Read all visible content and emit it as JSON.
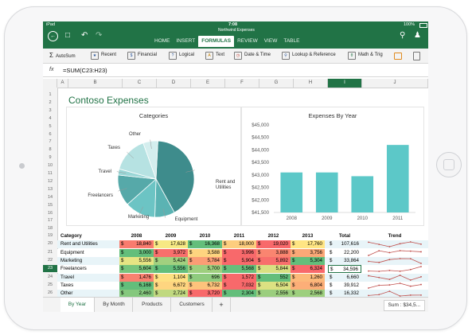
{
  "status": {
    "carrier": "iPad",
    "time": "7:08",
    "battery": "100%"
  },
  "doc_title": "Northwind Expenses",
  "ribbon_tabs": [
    "HOME",
    "INSERT",
    "FORMULAS",
    "REVIEW",
    "VIEW",
    "TABLE"
  ],
  "ribbon_active": "FORMULAS",
  "ribbon_items": [
    "AutoSum",
    "Recent",
    "Financial",
    "Logical",
    "Text",
    "Date & Time",
    "Lookup & Reference",
    "Math & Trig"
  ],
  "formula": "=SUM(C23:H23)",
  "fx_label": "fx",
  "columns": [
    "A",
    "B",
    "C",
    "D",
    "E",
    "F",
    "G",
    "H",
    "I",
    "J"
  ],
  "selected_column": "I",
  "rows": [
    "1",
    "2",
    "3",
    "4",
    "5",
    "6",
    "7",
    "8",
    "9",
    "10",
    "11",
    "12",
    "13",
    "14",
    "15",
    "16",
    "17",
    "18",
    "19",
    "20",
    "21",
    "22",
    "23",
    "24",
    "25",
    "26",
    "27"
  ],
  "selected_row": "23",
  "sheet_title": "Contoso Expenses",
  "pie_title": "Categories",
  "bar_title": "Expenses By Year",
  "chart_data": [
    {
      "type": "pie",
      "title": "Categories",
      "labels": [
        "Rent and Utilities",
        "Equipment",
        "Marketing",
        "Freelancers",
        "Travel",
        "Taxes",
        "Other"
      ],
      "values": [
        107616,
        22200,
        33864,
        34596,
        6660,
        39912,
        16332
      ]
    },
    {
      "type": "bar",
      "title": "Expenses By Year",
      "categories": [
        "2008",
        "2009",
        "2010",
        "2011"
      ],
      "values": [
        43100,
        43100,
        42950,
        44200
      ],
      "ylim": [
        41500,
        45000
      ],
      "yticks": [
        "$41,500",
        "$42,000",
        "$42,500",
        "$43,000",
        "$43,500",
        "$44,000",
        "$44,500",
        "$45,000"
      ]
    }
  ],
  "table": {
    "headers": [
      "Category",
      "2008",
      "2009",
      "2010",
      "2011",
      "2012",
      "2013",
      "Total",
      "Trend"
    ],
    "currency": "$",
    "rows": [
      {
        "category": "Rent and Utilities",
        "values": [
          "18,840",
          "17,628",
          "16,368",
          "18,000",
          "19,020",
          "17,760"
        ],
        "total": "107,616"
      },
      {
        "category": "Equipment",
        "values": [
          "3,000",
          "3,972",
          "3,588",
          "3,996",
          "3,888",
          "3,756"
        ],
        "total": "22,200"
      },
      {
        "category": "Marketing",
        "values": [
          "5,556",
          "5,424",
          "5,784",
          "5,904",
          "5,892",
          "5,304"
        ],
        "total": "33,864"
      },
      {
        "category": "Freelancers",
        "values": [
          "5,604",
          "5,556",
          "5,700",
          "5,568",
          "5,844",
          "6,324"
        ],
        "total": "34,596"
      },
      {
        "category": "Travel",
        "values": [
          "1,476",
          "1,104",
          "696",
          "1,572",
          "552",
          "1,260"
        ],
        "total": "6,660"
      },
      {
        "category": "Taxes",
        "values": [
          "6,168",
          "6,672",
          "6,732",
          "7,032",
          "6,504",
          "6,804"
        ],
        "total": "39,912"
      },
      {
        "category": "Other",
        "values": [
          "2,460",
          "2,724",
          "3,720",
          "2,304",
          "2,556",
          "2,568"
        ],
        "total": "16,332"
      }
    ]
  },
  "sheets": [
    "By Year",
    "By Month",
    "Products",
    "Customers"
  ],
  "active_sheet": "By Year",
  "add_sheet": "+",
  "sum_text": "Sum : $34,5...",
  "colors": {
    "brand": "#217346",
    "chart": "#5cc8c8",
    "pie": [
      "#3e8c8c",
      "#5bb3b3",
      "#6cc4c4",
      "#56a9a9",
      "#9ad6d6",
      "#b6e2e2",
      "#d4eeee"
    ]
  }
}
